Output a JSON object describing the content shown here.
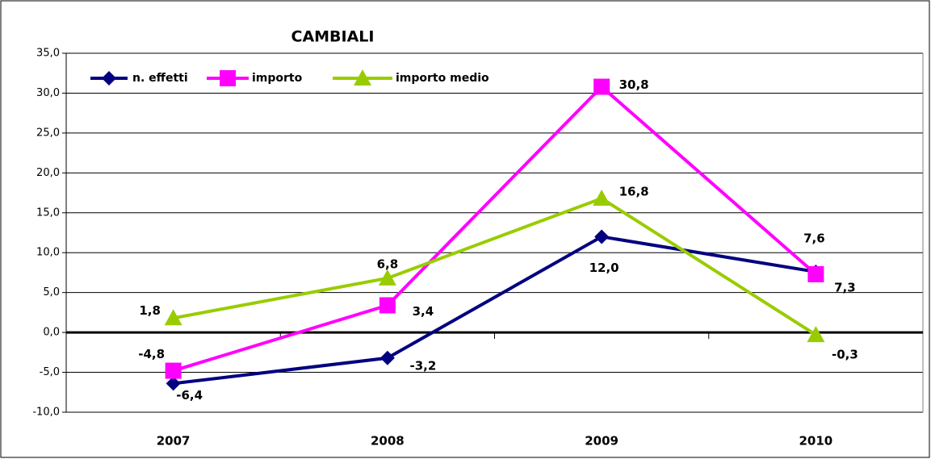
{
  "chart_data": {
    "type": "line",
    "title": "CAMBIALI",
    "categories": [
      "2007",
      "2008",
      "2009",
      "2010"
    ],
    "series": [
      {
        "name": "n. effetti",
        "color": "#000080",
        "marker": "diamond",
        "values": [
          -6.4,
          -3.2,
          12.0,
          7.6
        ],
        "value_labels": [
          "-6,4",
          "-3,2",
          "12,0",
          "7,6"
        ]
      },
      {
        "name": "importo",
        "color": "#ff00ff",
        "marker": "square",
        "values": [
          -4.8,
          3.4,
          30.8,
          7.3
        ],
        "value_labels": [
          "-4,8",
          "3,4",
          "30,8",
          "7,3"
        ]
      },
      {
        "name": "importo medio",
        "color": "#99cc00",
        "marker": "triangle",
        "values": [
          1.8,
          6.8,
          16.8,
          -0.3
        ],
        "value_labels": [
          "1,8",
          "6,8",
          "16,8",
          "-0,3"
        ]
      }
    ],
    "ylim": [
      -10,
      35
    ],
    "yticks": [
      {
        "value": -10,
        "label": "-10,0"
      },
      {
        "value": -5,
        "label": "-5,0"
      },
      {
        "value": 0,
        "label": "0,0"
      },
      {
        "value": 5,
        "label": "5,0"
      },
      {
        "value": 10,
        "label": "10,0"
      },
      {
        "value": 15,
        "label": "15,0"
      },
      {
        "value": 20,
        "label": "20,0"
      },
      {
        "value": 25,
        "label": "25,0"
      },
      {
        "value": 30,
        "label": "30,0"
      },
      {
        "value": 35,
        "label": "35,0"
      }
    ],
    "grid": true,
    "legend": "top-left"
  }
}
